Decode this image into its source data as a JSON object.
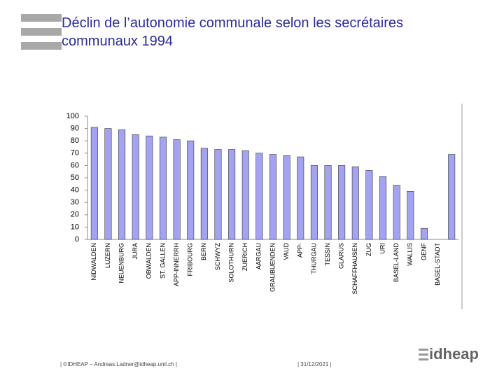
{
  "chart_data": {
    "type": "bar",
    "title": "Déclin de l’autonomie communale selon les secrétaires communaux 1994",
    "categories": [
      "NIDWALDEN",
      "LUZERN",
      "NEUENBURG",
      "JURA",
      "OBWALDEN",
      "ST. GALLEN",
      "APP-INNERRH",
      "FRIBOURG",
      "BERN",
      "SCHWYZ",
      "SOLOTHURN",
      "ZUERICH",
      "AARGAU",
      "GRAUBUENDEN",
      "VAUD",
      "APP-",
      "THURGAU",
      "TESSIN",
      "GLARUS",
      "SCHAFFHAUSEN",
      "ZUG",
      "URI",
      "BASEL-LAND",
      "WALLIS",
      "GENF",
      "BASEL-STADT",
      null
    ],
    "values": [
      91,
      90,
      89,
      85,
      84,
      83,
      81,
      80,
      74,
      73,
      73,
      72,
      70,
      69,
      68,
      67,
      60,
      60,
      60,
      59,
      56,
      51,
      44,
      39,
      9,
      null,
      69
    ],
    "color": "#a3a3f2",
    "ylim": [
      0,
      100
    ],
    "yticks": [
      0,
      10,
      20,
      30,
      40,
      50,
      60,
      70,
      80,
      90,
      100
    ],
    "grid": false
  },
  "footer": {
    "credit": "| ©IDHEAP – Andreas.Ladner@idheap.unil.ch |",
    "date": "| 31/12/2021 |",
    "logo": "idheap"
  }
}
